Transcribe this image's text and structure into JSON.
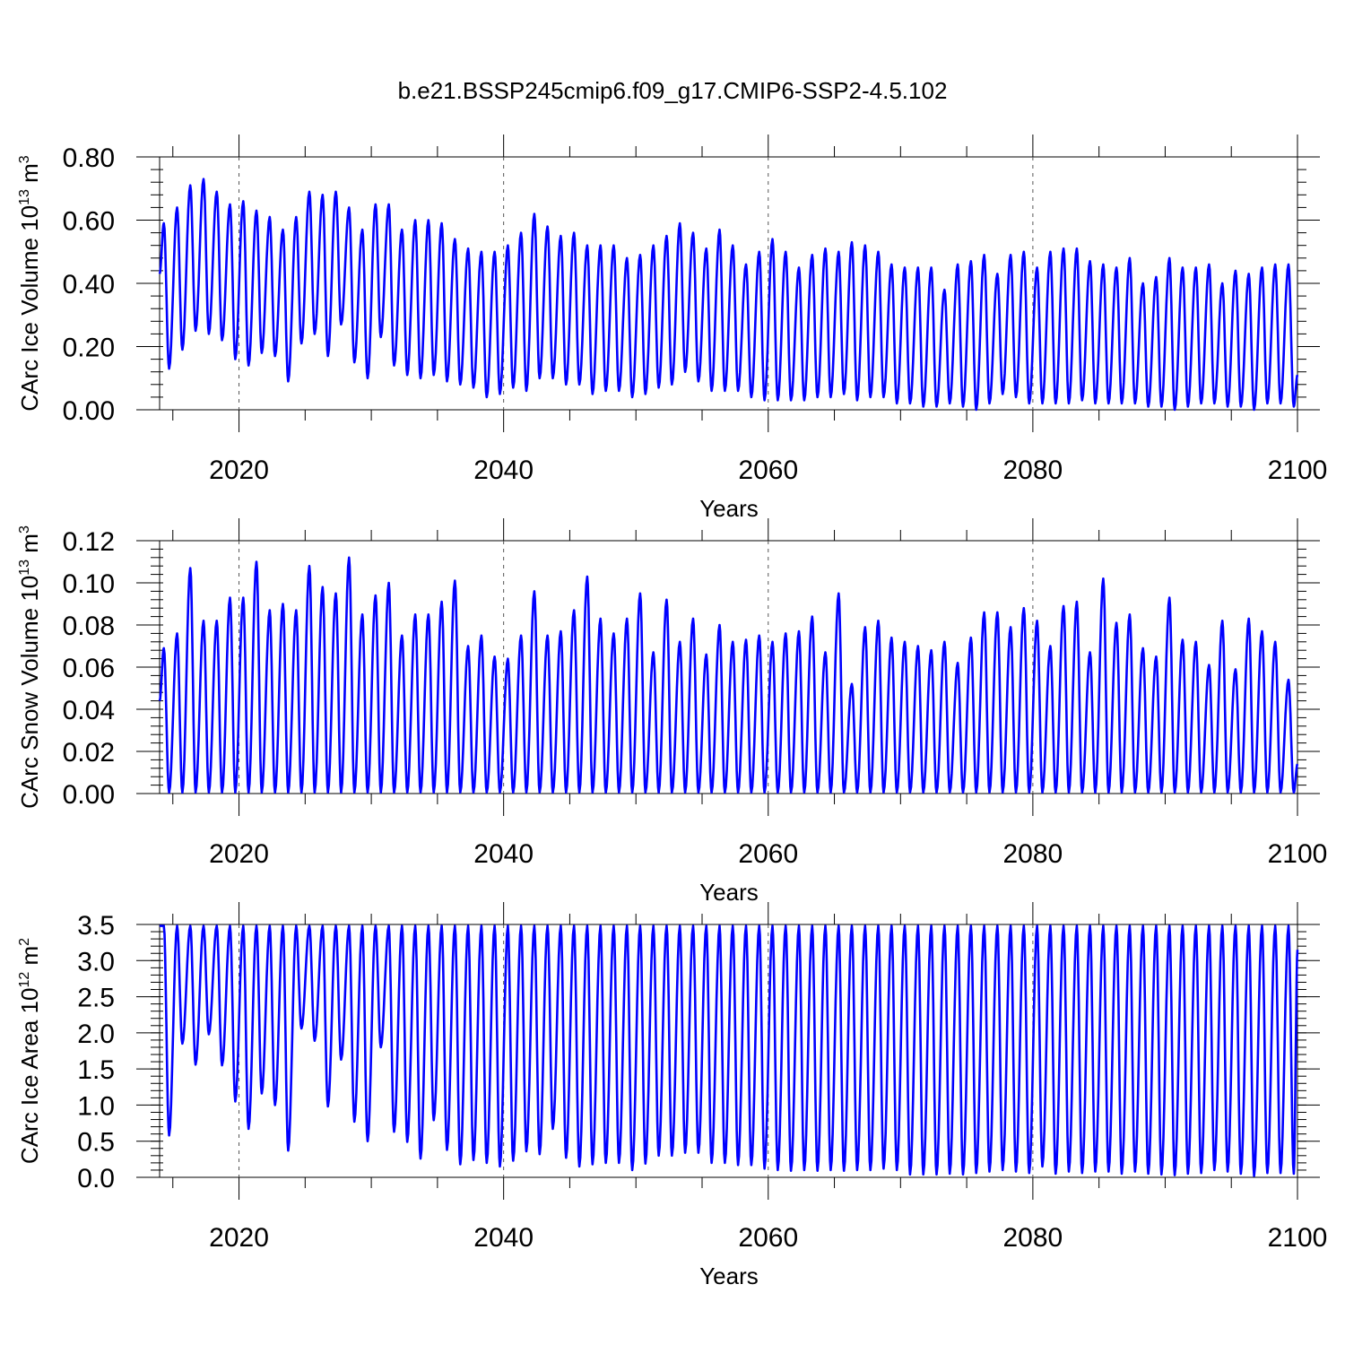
{
  "title": "b.e21.BSSP245cmip6.f09_g17.CMIP6-SSP2-4.5.102",
  "chart_data": [
    {
      "type": "line",
      "ylabel": "CArc Ice Volume 10",
      "ylabel_exp": "13",
      "ylabel_unit": " m",
      "ylabel_unit_exp": "3",
      "xlabel": "Years",
      "xlim": [
        2014.0,
        2100.0
      ],
      "ylim": [
        0.0,
        0.8
      ],
      "yticks": [
        0.0,
        0.2,
        0.4,
        0.6,
        0.8
      ],
      "ytick_labels": [
        "0.00",
        "0.20",
        "0.40",
        "0.60",
        "0.80"
      ],
      "ytick_minor": 0.04,
      "xticks": [
        2020,
        2040,
        2060,
        2080,
        2100
      ],
      "xtick_labels": [
        "2020",
        "2040",
        "2060",
        "2080",
        "2100"
      ],
      "grid_x": [
        2020,
        2040,
        2060,
        2080
      ],
      "series_color": "#0000ff",
      "seasonal": {
        "years": [
          2014,
          2015,
          2016,
          2017,
          2018,
          2019,
          2020,
          2021,
          2022,
          2023,
          2024,
          2025,
          2026,
          2027,
          2028,
          2029,
          2030,
          2031,
          2032,
          2033,
          2034,
          2035,
          2036,
          2037,
          2038,
          2039,
          2040,
          2041,
          2042,
          2043,
          2044,
          2045,
          2046,
          2047,
          2048,
          2049,
          2050,
          2051,
          2052,
          2053,
          2054,
          2055,
          2056,
          2057,
          2058,
          2059,
          2060,
          2061,
          2062,
          2063,
          2064,
          2065,
          2066,
          2067,
          2068,
          2069,
          2070,
          2071,
          2072,
          2073,
          2074,
          2075,
          2076,
          2077,
          2078,
          2079,
          2080,
          2081,
          2082,
          2083,
          2084,
          2085,
          2086,
          2087,
          2088,
          2089,
          2090,
          2091,
          2092,
          2093,
          2094,
          2095,
          2096,
          2097,
          2098,
          2099
        ],
        "max": [
          0.59,
          0.64,
          0.71,
          0.73,
          0.69,
          0.65,
          0.66,
          0.63,
          0.61,
          0.57,
          0.61,
          0.69,
          0.68,
          0.69,
          0.64,
          0.57,
          0.65,
          0.65,
          0.57,
          0.6,
          0.6,
          0.59,
          0.54,
          0.51,
          0.5,
          0.5,
          0.52,
          0.56,
          0.62,
          0.58,
          0.55,
          0.56,
          0.52,
          0.52,
          0.52,
          0.48,
          0.49,
          0.52,
          0.55,
          0.59,
          0.56,
          0.51,
          0.57,
          0.52,
          0.46,
          0.5,
          0.54,
          0.5,
          0.45,
          0.49,
          0.51,
          0.5,
          0.53,
          0.52,
          0.5,
          0.46,
          0.45,
          0.45,
          0.45,
          0.38,
          0.46,
          0.47,
          0.49,
          0.43,
          0.49,
          0.5,
          0.45,
          0.5,
          0.51,
          0.51,
          0.47,
          0.46,
          0.45,
          0.48,
          0.4,
          0.42,
          0.48,
          0.45,
          0.45,
          0.46,
          0.4,
          0.44,
          0.43,
          0.45,
          0.46,
          0.46
        ],
        "min": [
          0.13,
          0.19,
          0.25,
          0.24,
          0.22,
          0.16,
          0.14,
          0.18,
          0.17,
          0.09,
          0.21,
          0.24,
          0.17,
          0.27,
          0.15,
          0.1,
          0.23,
          0.14,
          0.11,
          0.1,
          0.11,
          0.09,
          0.08,
          0.07,
          0.04,
          0.05,
          0.07,
          0.06,
          0.1,
          0.1,
          0.08,
          0.08,
          0.05,
          0.06,
          0.06,
          0.04,
          0.05,
          0.07,
          0.08,
          0.12,
          0.09,
          0.06,
          0.06,
          0.06,
          0.04,
          0.03,
          0.03,
          0.03,
          0.03,
          0.04,
          0.04,
          0.05,
          0.03,
          0.04,
          0.04,
          0.02,
          0.02,
          0.01,
          0.01,
          0.02,
          0.01,
          0.0,
          0.02,
          0.05,
          0.04,
          0.02,
          0.02,
          0.02,
          0.02,
          0.03,
          0.02,
          0.02,
          0.02,
          0.02,
          0.01,
          0.01,
          0.0,
          0.01,
          0.02,
          0.02,
          0.01,
          0.01,
          0.0,
          0.02,
          0.02,
          0.01
        ],
        "start_value": 0.43,
        "end_value": 0.11
      }
    },
    {
      "type": "line",
      "ylabel": "CArc Snow Volume 10",
      "ylabel_exp": "13",
      "ylabel_unit": " m",
      "ylabel_unit_exp": "3",
      "xlabel": "Years",
      "xlim": [
        2014.0,
        2100.0
      ],
      "ylim": [
        0.0,
        0.12
      ],
      "yticks": [
        0.0,
        0.02,
        0.04,
        0.06,
        0.08,
        0.1,
        0.12
      ],
      "ytick_labels": [
        "0.00",
        "0.02",
        "0.04",
        "0.06",
        "0.08",
        "0.10",
        "0.12"
      ],
      "ytick_minor": 0.004,
      "xticks": [
        2020,
        2040,
        2060,
        2080,
        2100
      ],
      "xtick_labels": [
        "2020",
        "2040",
        "2060",
        "2080",
        "2100"
      ],
      "grid_x": [
        2020,
        2040,
        2060,
        2080
      ],
      "series_color": "#0000ff",
      "seasonal": {
        "years": [
          2014,
          2015,
          2016,
          2017,
          2018,
          2019,
          2020,
          2021,
          2022,
          2023,
          2024,
          2025,
          2026,
          2027,
          2028,
          2029,
          2030,
          2031,
          2032,
          2033,
          2034,
          2035,
          2036,
          2037,
          2038,
          2039,
          2040,
          2041,
          2042,
          2043,
          2044,
          2045,
          2046,
          2047,
          2048,
          2049,
          2050,
          2051,
          2052,
          2053,
          2054,
          2055,
          2056,
          2057,
          2058,
          2059,
          2060,
          2061,
          2062,
          2063,
          2064,
          2065,
          2066,
          2067,
          2068,
          2069,
          2070,
          2071,
          2072,
          2073,
          2074,
          2075,
          2076,
          2077,
          2078,
          2079,
          2080,
          2081,
          2082,
          2083,
          2084,
          2085,
          2086,
          2087,
          2088,
          2089,
          2090,
          2091,
          2092,
          2093,
          2094,
          2095,
          2096,
          2097,
          2098,
          2099
        ],
        "max": [
          0.069,
          0.076,
          0.107,
          0.082,
          0.082,
          0.093,
          0.093,
          0.11,
          0.087,
          0.09,
          0.087,
          0.108,
          0.098,
          0.095,
          0.112,
          0.085,
          0.094,
          0.1,
          0.075,
          0.085,
          0.085,
          0.091,
          0.101,
          0.07,
          0.075,
          0.065,
          0.064,
          0.075,
          0.096,
          0.075,
          0.077,
          0.087,
          0.103,
          0.083,
          0.076,
          0.083,
          0.095,
          0.067,
          0.092,
          0.072,
          0.083,
          0.066,
          0.08,
          0.072,
          0.073,
          0.075,
          0.072,
          0.076,
          0.077,
          0.084,
          0.067,
          0.095,
          0.052,
          0.079,
          0.082,
          0.074,
          0.072,
          0.07,
          0.068,
          0.072,
          0.062,
          0.074,
          0.086,
          0.086,
          0.079,
          0.088,
          0.082,
          0.07,
          0.089,
          0.091,
          0.067,
          0.102,
          0.081,
          0.085,
          0.069,
          0.065,
          0.093,
          0.073,
          0.072,
          0.061,
          0.082,
          0.059,
          0.083,
          0.077,
          0.072,
          0.054
        ],
        "min": [
          0.0005,
          0.0005,
          0.0005,
          0.0005,
          0.0005,
          0.0005,
          0.0005,
          0.0005,
          0.0005,
          0.0005,
          0.0005,
          0.0005,
          0.0005,
          0.0005,
          0.0005,
          0.0005,
          0.0005,
          0.0005,
          0.0005,
          0.0005,
          0.0005,
          0.0005,
          0.0005,
          0.0005,
          0.0005,
          0.0005,
          0.0005,
          0.0005,
          0.0005,
          0.0005,
          0.0005,
          0.0005,
          0.0005,
          0.0005,
          0.0005,
          0.0005,
          0.0005,
          0.0005,
          0.0005,
          0.0005,
          0.0005,
          0.0005,
          0.0005,
          0.0005,
          0.0005,
          0.0005,
          0.0005,
          0.0005,
          0.0005,
          0.0005,
          0.0005,
          0.0005,
          0.0005,
          0.0005,
          0.0005,
          0.0005,
          0.0005,
          0.0005,
          0.0005,
          0.0005,
          0.0005,
          0.0005,
          0.0005,
          0.0005,
          0.0005,
          0.0005,
          0.0005,
          0.0005,
          0.0005,
          0.0005,
          0.0005,
          0.0005,
          0.0005,
          0.0005,
          0.0005,
          0.0005,
          0.0005,
          0.0005,
          0.0005,
          0.0005,
          0.0005,
          0.0005,
          0.0005,
          0.0005,
          0.0005,
          0.0005
        ],
        "start_value": 0.044,
        "end_value": 0.014
      }
    },
    {
      "type": "line",
      "ylabel": "CArc Ice Area 10",
      "ylabel_exp": "12",
      "ylabel_unit": " m",
      "ylabel_unit_exp": "2",
      "xlabel": "Years",
      "xlim": [
        2014.0,
        2100.0
      ],
      "ylim": [
        0.0,
        3.5
      ],
      "yticks": [
        0.0,
        0.5,
        1.0,
        1.5,
        2.0,
        2.5,
        3.0,
        3.5
      ],
      "ytick_labels": [
        "0.0",
        "0.5",
        "1.0",
        "1.5",
        "2.0",
        "2.5",
        "3.0",
        "3.5"
      ],
      "ytick_minor": 0.1,
      "xticks": [
        2020,
        2040,
        2060,
        2080,
        2100
      ],
      "xtick_labels": [
        "2020",
        "2040",
        "2060",
        "2080",
        "2100"
      ],
      "grid_x": [
        2020,
        2040,
        2060,
        2080
      ],
      "series_color": "#0000ff",
      "seasonal": {
        "years": [
          2014,
          2015,
          2016,
          2017,
          2018,
          2019,
          2020,
          2021,
          2022,
          2023,
          2024,
          2025,
          2026,
          2027,
          2028,
          2029,
          2030,
          2031,
          2032,
          2033,
          2034,
          2035,
          2036,
          2037,
          2038,
          2039,
          2040,
          2041,
          2042,
          2043,
          2044,
          2045,
          2046,
          2047,
          2048,
          2049,
          2050,
          2051,
          2052,
          2053,
          2054,
          2055,
          2056,
          2057,
          2058,
          2059,
          2060,
          2061,
          2062,
          2063,
          2064,
          2065,
          2066,
          2067,
          2068,
          2069,
          2070,
          2071,
          2072,
          2073,
          2074,
          2075,
          2076,
          2077,
          2078,
          2079,
          2080,
          2081,
          2082,
          2083,
          2084,
          2085,
          2086,
          2087,
          2088,
          2089,
          2090,
          2091,
          2092,
          2093,
          2094,
          2095,
          2096,
          2097,
          2098,
          2099
        ],
        "max": [
          3.48,
          3.48,
          3.48,
          3.48,
          3.48,
          3.48,
          3.48,
          3.48,
          3.48,
          3.48,
          3.48,
          3.48,
          3.48,
          3.48,
          3.48,
          3.48,
          3.48,
          3.48,
          3.48,
          3.48,
          3.48,
          3.48,
          3.48,
          3.48,
          3.48,
          3.48,
          3.48,
          3.48,
          3.48,
          3.48,
          3.48,
          3.48,
          3.48,
          3.48,
          3.48,
          3.48,
          3.48,
          3.48,
          3.48,
          3.48,
          3.48,
          3.48,
          3.48,
          3.48,
          3.48,
          3.48,
          3.48,
          3.48,
          3.48,
          3.48,
          3.48,
          3.48,
          3.48,
          3.48,
          3.48,
          3.48,
          3.48,
          3.48,
          3.48,
          3.48,
          3.48,
          3.48,
          3.48,
          3.48,
          3.48,
          3.48,
          3.48,
          3.48,
          3.48,
          3.48,
          3.48,
          3.48,
          3.48,
          3.48,
          3.48,
          3.48,
          3.48,
          3.48,
          3.48,
          3.48,
          3.48,
          3.48,
          3.48,
          3.48,
          3.48,
          3.48
        ],
        "min": [
          0.58,
          1.85,
          1.56,
          1.98,
          1.55,
          1.05,
          0.67,
          1.16,
          1.0,
          0.37,
          2.06,
          1.89,
          0.98,
          1.63,
          0.77,
          0.5,
          1.8,
          0.63,
          0.49,
          0.26,
          0.79,
          0.38,
          0.18,
          0.24,
          0.2,
          0.15,
          0.23,
          0.36,
          0.32,
          0.67,
          0.27,
          0.15,
          0.18,
          0.2,
          0.2,
          0.1,
          0.19,
          0.3,
          0.3,
          0.34,
          0.34,
          0.2,
          0.2,
          0.17,
          0.17,
          0.12,
          0.1,
          0.09,
          0.1,
          0.09,
          0.1,
          0.09,
          0.1,
          0.1,
          0.12,
          0.1,
          0.04,
          0.04,
          0.04,
          0.05,
          0.04,
          0.06,
          0.08,
          0.1,
          0.08,
          0.06,
          0.15,
          0.05,
          0.08,
          0.06,
          0.08,
          0.08,
          0.05,
          0.08,
          0.05,
          0.04,
          0.03,
          0.05,
          0.06,
          0.1,
          0.08,
          0.05,
          0.02,
          0.06,
          0.06,
          0.05
        ],
        "start_value": 3.48,
        "end_value": 3.15
      }
    }
  ]
}
